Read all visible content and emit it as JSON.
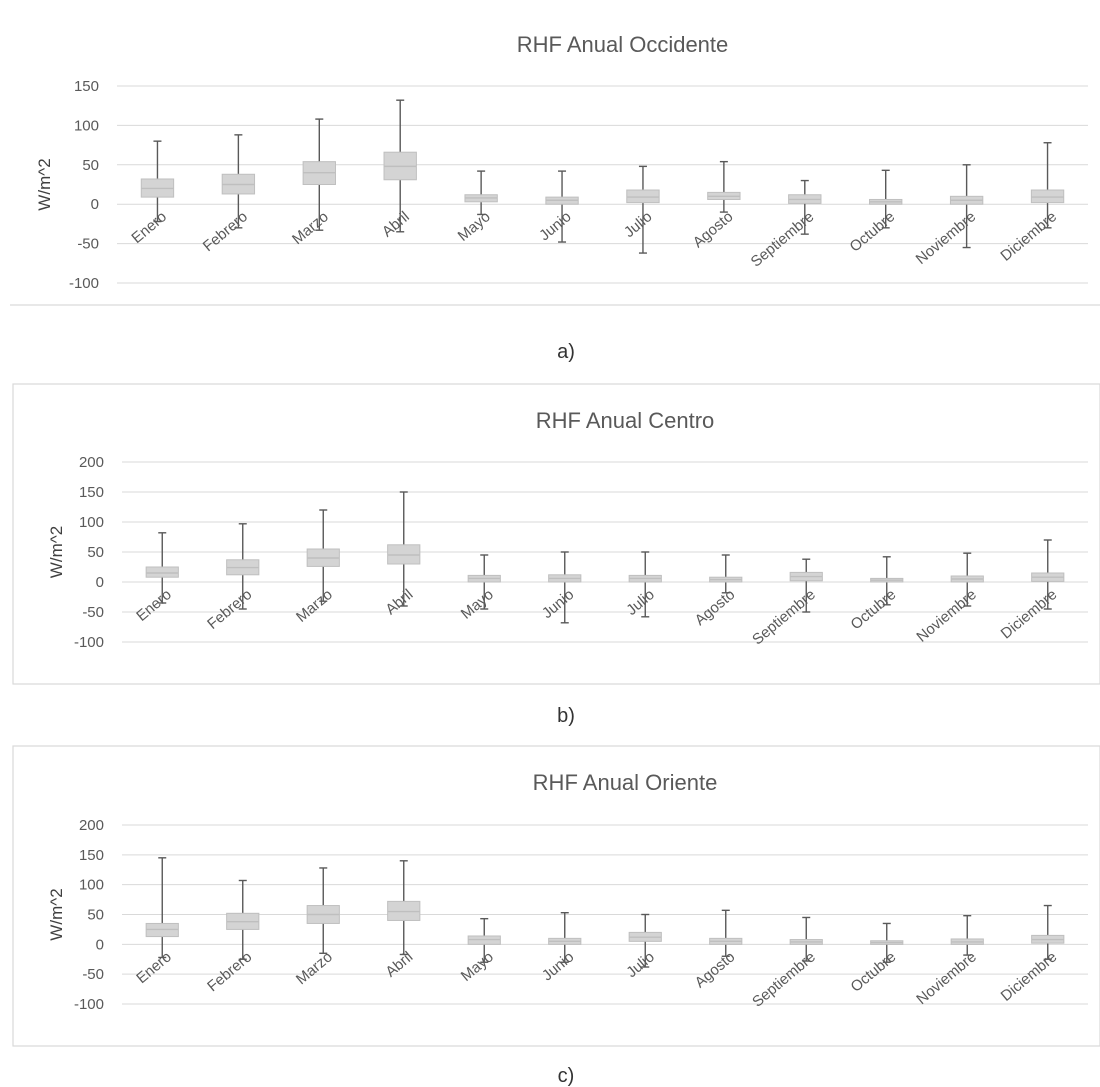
{
  "chart_data": [
    {
      "type": "boxplot",
      "title": "RHF Anual Occidente",
      "ylabel": "W/m^2",
      "ylim": [
        -100,
        150
      ],
      "yticks": [
        150,
        100,
        50,
        0,
        -50,
        -100
      ],
      "caption": "a)",
      "grid": true,
      "categories": [
        "Enero",
        "Febrero",
        "Marzo",
        "Abril",
        "Mayo",
        "Junio",
        "Julio",
        "Agosto",
        "Septiembre",
        "Octubre",
        "Noviembre",
        "Diciembre"
      ],
      "boxes": [
        {
          "min": -22,
          "q1": 9,
          "median": 20,
          "q3": 32,
          "max": 80
        },
        {
          "min": -30,
          "q1": 13,
          "median": 25,
          "q3": 38,
          "max": 88
        },
        {
          "min": -33,
          "q1": 25,
          "median": 40,
          "q3": 54,
          "max": 108
        },
        {
          "min": -35,
          "q1": 31,
          "median": 48,
          "q3": 66,
          "max": 132
        },
        {
          "min": -13,
          "q1": 3,
          "median": 8,
          "q3": 12,
          "max": 42
        },
        {
          "min": -48,
          "q1": 0,
          "median": 5,
          "q3": 9,
          "max": 42
        },
        {
          "min": -62,
          "q1": 2,
          "median": 9,
          "q3": 18,
          "max": 48
        },
        {
          "min": -10,
          "q1": 6,
          "median": 10,
          "q3": 15,
          "max": 54
        },
        {
          "min": -38,
          "q1": 1,
          "median": 6,
          "q3": 12,
          "max": 30
        },
        {
          "min": -30,
          "q1": 0,
          "median": 3,
          "q3": 6,
          "max": 43
        },
        {
          "min": -55,
          "q1": 0,
          "median": 5,
          "q3": 10,
          "max": 50
        },
        {
          "min": -30,
          "q1": 2,
          "median": 9,
          "q3": 18,
          "max": 78
        }
      ]
    },
    {
      "type": "boxplot",
      "title": "RHF Anual Centro",
      "ylabel": "W/m^2",
      "ylim": [
        -100,
        200
      ],
      "yticks": [
        200,
        150,
        100,
        50,
        0,
        -50,
        -100
      ],
      "caption": "b)",
      "grid": true,
      "categories": [
        "Enero",
        "Febrero",
        "Marzo",
        "Abril",
        "Mayo",
        "Junio",
        "Julio",
        "Agosto",
        "Septiembre",
        "Octubre",
        "Noviembre",
        "Diciembre"
      ],
      "boxes": [
        {
          "min": -35,
          "q1": 8,
          "median": 15,
          "q3": 25,
          "max": 82
        },
        {
          "min": -45,
          "q1": 12,
          "median": 24,
          "q3": 37,
          "max": 97
        },
        {
          "min": -32,
          "q1": 26,
          "median": 40,
          "q3": 55,
          "max": 120
        },
        {
          "min": -40,
          "q1": 30,
          "median": 45,
          "q3": 62,
          "max": 150
        },
        {
          "min": -45,
          "q1": 0,
          "median": 6,
          "q3": 11,
          "max": 45
        },
        {
          "min": -68,
          "q1": 0,
          "median": 6,
          "q3": 12,
          "max": 50
        },
        {
          "min": -58,
          "q1": 0,
          "median": 6,
          "q3": 11,
          "max": 50
        },
        {
          "min": -18,
          "q1": 0,
          "median": 4,
          "q3": 8,
          "max": 45
        },
        {
          "min": -50,
          "q1": 2,
          "median": 9,
          "q3": 16,
          "max": 38
        },
        {
          "min": -38,
          "q1": 0,
          "median": 3,
          "q3": 6,
          "max": 42
        },
        {
          "min": -40,
          "q1": 0,
          "median": 5,
          "q3": 10,
          "max": 48
        },
        {
          "min": -45,
          "q1": 1,
          "median": 8,
          "q3": 15,
          "max": 70
        }
      ]
    },
    {
      "type": "boxplot",
      "title": "RHF Anual Oriente",
      "ylabel": "W/m^2",
      "ylim": [
        -100,
        200
      ],
      "yticks": [
        200,
        150,
        100,
        50,
        0,
        -50,
        -100
      ],
      "caption": "c)",
      "grid": true,
      "categories": [
        "Enero",
        "Febrero",
        "Marzo",
        "Abril",
        "Mayo",
        "Junio",
        "Julio",
        "Agosto",
        "Septiembre",
        "Octubre",
        "Noviembre",
        "Diciembre"
      ],
      "boxes": [
        {
          "min": -22,
          "q1": 13,
          "median": 25,
          "q3": 35,
          "max": 145
        },
        {
          "min": -25,
          "q1": 25,
          "median": 38,
          "q3": 52,
          "max": 107
        },
        {
          "min": -15,
          "q1": 35,
          "median": 50,
          "q3": 65,
          "max": 128
        },
        {
          "min": -17,
          "q1": 40,
          "median": 55,
          "q3": 72,
          "max": 140
        },
        {
          "min": -30,
          "q1": 0,
          "median": 8,
          "q3": 14,
          "max": 43
        },
        {
          "min": -30,
          "q1": 0,
          "median": 5,
          "q3": 10,
          "max": 53
        },
        {
          "min": -38,
          "q1": 5,
          "median": 12,
          "q3": 20,
          "max": 50
        },
        {
          "min": -20,
          "q1": 0,
          "median": 5,
          "q3": 10,
          "max": 57
        },
        {
          "min": -28,
          "q1": 0,
          "median": 4,
          "q3": 8,
          "max": 45
        },
        {
          "min": -30,
          "q1": 0,
          "median": 3,
          "q3": 6,
          "max": 35
        },
        {
          "min": -18,
          "q1": 0,
          "median": 4,
          "q3": 9,
          "max": 48
        },
        {
          "min": -25,
          "q1": 2,
          "median": 8,
          "q3": 15,
          "max": 65
        }
      ]
    }
  ],
  "colors": {
    "box_fill": "#d4d4d4",
    "box_stroke": "#bfbfbf",
    "whisker": "#595959",
    "grid": "#d9d9d9",
    "frame": "#d9d9d9",
    "text": "#595959"
  }
}
